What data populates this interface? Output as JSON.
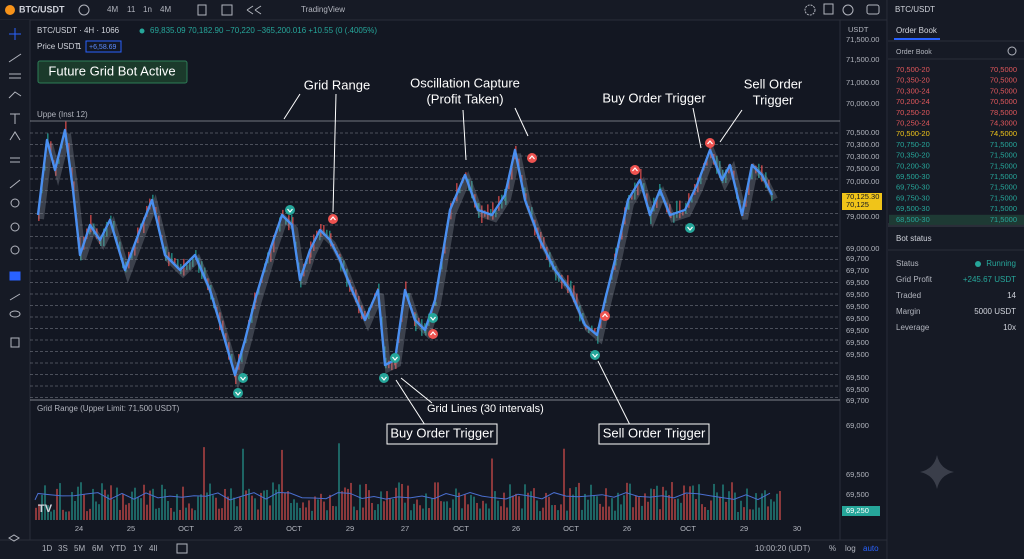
{
  "toolbar": {
    "symbol": "BTC/USDT",
    "intervals": [
      "4M",
      "11",
      "1n",
      "4M"
    ],
    "brand": "TradingView"
  },
  "chart": {
    "legend": {
      "title": "BTC/USDT · 4H · 1066",
      "ohlc": "69,835.09  70,182.90  −70,220  −365,200.016  +10.55  (0 (.4005%)",
      "price_label": "Price USDT",
      "price_count": "1",
      "price_change": "+6,58.69"
    },
    "badge": "Future Grid Bot Active",
    "upper_label": "Uppe (Inst 12)",
    "lower_pane_title": "Grid Range (Upper Limit: 71,500 USDT)",
    "annotations": {
      "grid_range": "Grid Range",
      "oscillation": [
        "Oscillation Capture",
        "(Profit Taken)"
      ],
      "buy_top": "Buy Order Trigger",
      "sell_top": [
        "Sell Order",
        "Trigger"
      ],
      "grid_lines": "Grid Lines (30 intervals)",
      "buy_bottom": "Buy Order Trigger",
      "sell_bottom": "Sell Order Trigger"
    },
    "currency": "USDT",
    "price_axis": [
      "71,500.00",
      "71,500.00",
      "71,000.00",
      "70,000.00",
      "70,500.00",
      "70,300.00",
      "70,300.00",
      "70,500.00",
      "70,000.00",
      "79,000.00",
      "69,000.00",
      "69,700",
      "69,700",
      "69,500",
      "69,500",
      "69,500",
      "69,500",
      "69,500",
      "69,500",
      "69,500",
      "69,500",
      "69,500",
      "69,700"
    ],
    "current_price": [
      "70,125.30",
      "70,125"
    ],
    "volume_axis": [
      "69,000",
      "69,500",
      "69,500"
    ],
    "volume_last": "69,250",
    "time_axis": [
      "24",
      "25",
      "OCT",
      "26",
      "OCT",
      "29",
      "27",
      "OCT",
      "26",
      "OCT",
      "26",
      "OCT",
      "29",
      "30"
    ]
  },
  "bottom_bar": {
    "ranges": [
      "1D",
      "3S",
      "5M",
      "6M",
      "YTD",
      "1Y",
      "4Il"
    ],
    "time": "10:00:20 (UDT)",
    "options": [
      "%",
      "log",
      "auto"
    ]
  },
  "order_book": {
    "symbol": "BTC/USDT",
    "tab": "Order Book",
    "heading": "Order Book",
    "rows": [
      {
        "price": "70,500-20",
        "amount": "70,5000",
        "color": "#e0575b"
      },
      {
        "price": "70,350-20",
        "amount": "70,5000",
        "color": "#e0575b"
      },
      {
        "price": "70,300-24",
        "amount": "70,5000",
        "color": "#e0575b"
      },
      {
        "price": "70,200-24",
        "amount": "70,5000",
        "color": "#e0575b"
      },
      {
        "price": "70,250-20",
        "amount": "78,5000",
        "color": "#e0575b"
      },
      {
        "price": "70,250-24",
        "amount": "74,3000",
        "color": "#e0575b"
      },
      {
        "price": "70,500-20",
        "amount": "74,5000",
        "color": "#f0c419"
      },
      {
        "price": "70,750-20",
        "amount": "71,5000",
        "color": "#26a69a"
      },
      {
        "price": "70,350-20",
        "amount": "71,5000",
        "color": "#26a69a"
      },
      {
        "price": "70,200-30",
        "amount": "71,5000",
        "color": "#26a69a"
      },
      {
        "price": "69,500-30",
        "amount": "71,5000",
        "color": "#26a69a"
      },
      {
        "price": "69,750-30",
        "amount": "71,5000",
        "color": "#26a69a"
      },
      {
        "price": "69,750-30",
        "amount": "71,5000",
        "color": "#26a69a"
      },
      {
        "price": "69,500-30",
        "amount": "71,5000",
        "color": "#26a69a"
      },
      {
        "price": "68,500-30",
        "amount": "71,5000",
        "color": "#26a69a"
      }
    ]
  },
  "bot_status": {
    "title": "Bot status",
    "rows": [
      {
        "label": "Status",
        "value": "Running"
      },
      {
        "label": "Grid Profit",
        "value": "+245.67 USDT"
      },
      {
        "label": "Traded",
        "value": "14"
      },
      {
        "label": "Margin",
        "value": "5000 USDT"
      },
      {
        "label": "Leverage",
        "value": "10x"
      }
    ]
  }
}
